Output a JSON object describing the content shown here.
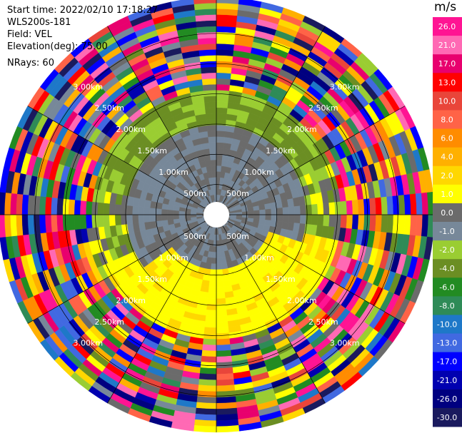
{
  "info": {
    "start_time": "Start time: 2022/02/10 17:18:27",
    "instrument": "WLS200s-181",
    "field": "Field: VEL",
    "elevation": "Elevation(deg): 75.00",
    "nrays": "NRays: 60"
  },
  "colorbar": {
    "unit": "m/s",
    "ticks": [
      "26.0",
      "21.0",
      "17.0",
      "13.0",
      "10.0",
      "8.0",
      "6.0",
      "4.0",
      "2.0",
      "1.0",
      "0.0",
      "-1.0",
      "-2.0",
      "-4.0",
      "-6.0",
      "-8.0",
      "-10.0",
      "-13.0",
      "-17.0",
      "-21.0",
      "-26.0",
      "-30.0"
    ],
    "colors": [
      "#ff1493",
      "#ff69b4",
      "#e8006e",
      "#ff0000",
      "#e9453a",
      "#ff6347",
      "#ff8c00",
      "#ffb000",
      "#ffd700",
      "#ffff00",
      "#6b6b6b",
      "#778899",
      "#9acd32",
      "#6b8e23",
      "#228b22",
      "#2e8b57",
      "#1e78c8",
      "#4169e1",
      "#0000ff",
      "#0000b0",
      "#000080",
      "#1a1a5e"
    ]
  },
  "chart_data": {
    "type": "heatmap",
    "projection": "polar PPI",
    "field": "VEL",
    "units": "m/s",
    "nrays": 60,
    "elevation_deg": 75.0,
    "range_rings": [
      "500m",
      "1.00km",
      "1.50km",
      "2.00km",
      "2.50km",
      "3.00km"
    ],
    "range_km": [
      0.5,
      1.0,
      1.5,
      2.0,
      2.5,
      3.0
    ],
    "spoke_angles_deg": [
      0,
      30,
      60,
      90,
      120,
      150,
      180,
      210,
      240,
      270,
      300,
      330
    ],
    "gate_count": 36,
    "max_range_km": 3.6
  }
}
